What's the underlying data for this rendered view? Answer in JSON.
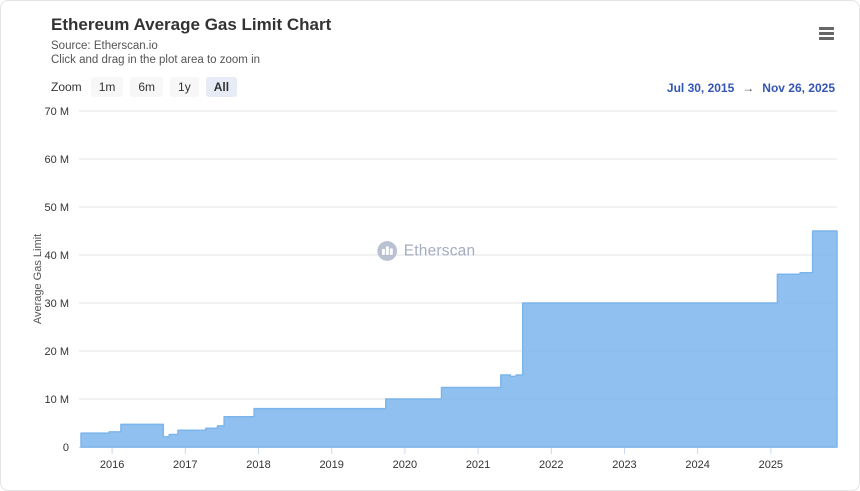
{
  "header": {
    "title": "Ethereum Average Gas Limit Chart",
    "source": "Source: Etherscan.io",
    "hint": "Click and drag in the plot area to zoom in"
  },
  "toolbar": {
    "zoom_label": "Zoom",
    "zoom_buttons": [
      {
        "label": "1m",
        "selected": false
      },
      {
        "label": "6m",
        "selected": false
      },
      {
        "label": "1y",
        "selected": false
      },
      {
        "label": "All",
        "selected": true
      }
    ],
    "date_range": {
      "from": "Jul 30, 2015",
      "arrow": "→",
      "to": "Nov 26, 2025"
    }
  },
  "watermark": {
    "label": "Etherscan"
  },
  "colors": {
    "area_fill": "#7cb5ec",
    "range_link": "#3355b4",
    "selected_button_bg": "#e6ebf5",
    "gridline": "#e6e6e6",
    "axis_line": "#ccd6eb",
    "tick_text": "#333333",
    "watermark_text": "#8e98b2"
  },
  "chart_data": {
    "type": "area",
    "title": "Ethereum Average Gas Limit Chart",
    "subtitle": "Source: Etherscan.io",
    "xlabel": "",
    "ylabel": "Average Gas Limit",
    "grid": true,
    "legend": false,
    "x_min_decimal_year": 2015.575,
    "x_max_decimal_year": 2025.904,
    "x_range_labels": [
      "Jul 30, 2015",
      "Nov 26, 2025"
    ],
    "ylim": [
      0,
      70
    ],
    "y_unit": "millions of gas",
    "y_tick_step": 10,
    "y_tick_labels": [
      "0",
      "10 M",
      "20 M",
      "30 M",
      "40 M",
      "50 M",
      "60 M",
      "70 M"
    ],
    "x_tick_years": [
      2016,
      2017,
      2018,
      2019,
      2020,
      2021,
      2022,
      2023,
      2024,
      2025
    ],
    "series": [
      {
        "name": "Average Gas Limit",
        "step": true,
        "points_format": "[decimal_year, gas_limit_in_millions]",
        "points": [
          [
            2015.575,
            2.9
          ],
          [
            2015.96,
            3.15
          ],
          [
            2016.12,
            4.7
          ],
          [
            2016.7,
            2.1
          ],
          [
            2016.78,
            2.6
          ],
          [
            2016.9,
            3.5
          ],
          [
            2017.28,
            3.9
          ],
          [
            2017.44,
            4.4
          ],
          [
            2017.53,
            6.3
          ],
          [
            2017.94,
            8.0
          ],
          [
            2019.74,
            10.0
          ],
          [
            2020.5,
            12.4
          ],
          [
            2021.31,
            15.0
          ],
          [
            2021.44,
            14.7
          ],
          [
            2021.52,
            15.0
          ],
          [
            2021.61,
            30.0
          ],
          [
            2025.09,
            36.0
          ],
          [
            2025.4,
            36.3
          ],
          [
            2025.57,
            45.0
          ],
          [
            2025.904,
            45.0
          ]
        ]
      }
    ]
  }
}
